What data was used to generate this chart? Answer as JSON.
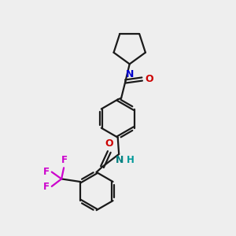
{
  "bg_color": "#eeeeee",
  "bond_color": "#1a1a1a",
  "N_color": "#0000cc",
  "O_color": "#cc0000",
  "F_color": "#cc00cc",
  "NH_N_color": "#008080",
  "NH_H_color": "#009999",
  "line_width": 1.6,
  "dbo": 0.055,
  "xlim": [
    0,
    10
  ],
  "ylim": [
    0,
    10
  ],
  "benz_r": 0.82
}
